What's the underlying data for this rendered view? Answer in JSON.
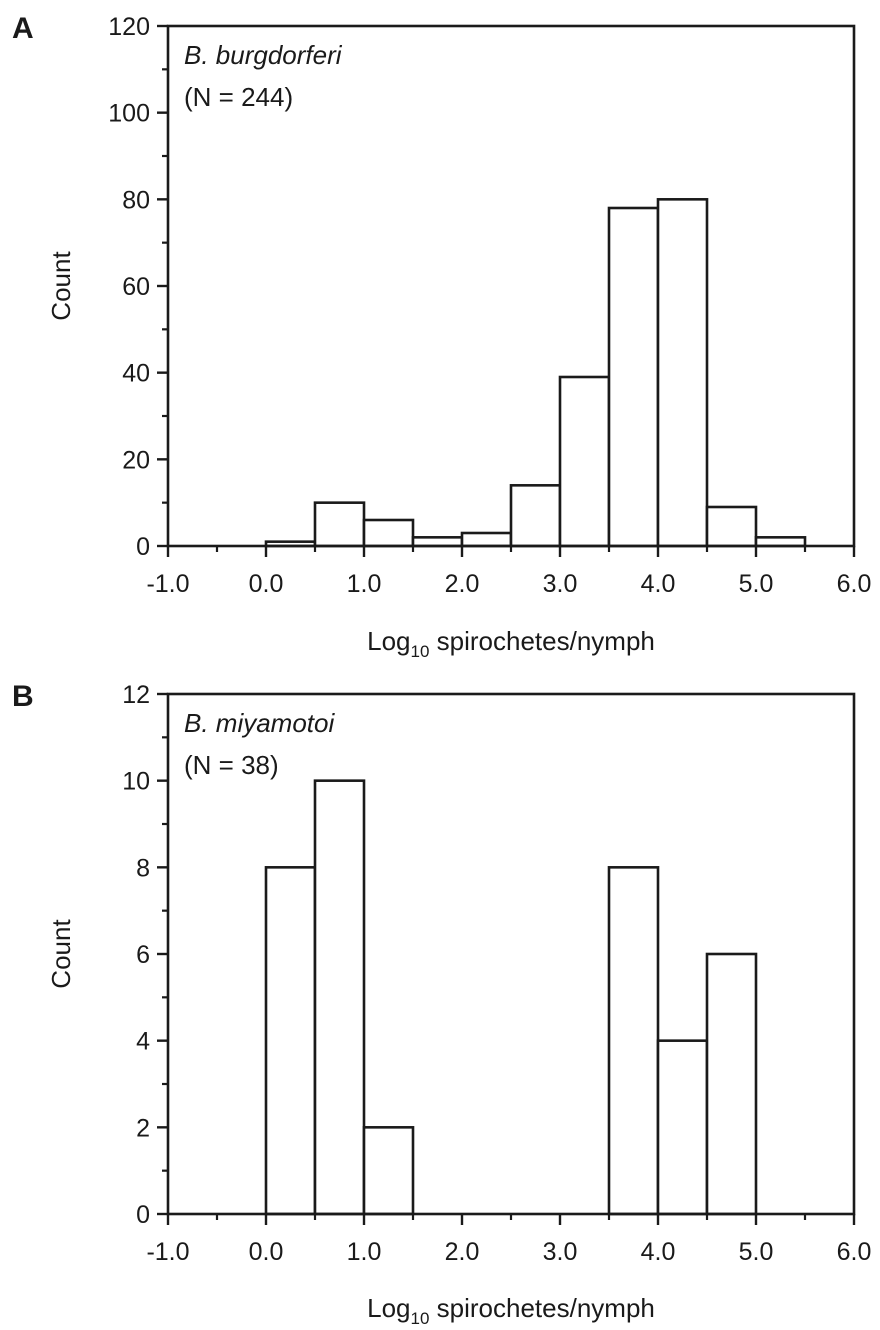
{
  "chart_data": [
    {
      "type": "bar",
      "panel_label": "A",
      "annotation": {
        "organism": "B. burgdorferi",
        "n": "(N = 244)"
      },
      "xlabel": {
        "main": "Log",
        "sub": "10",
        "rest": " spirochetes/nymph"
      },
      "ylabel": "Count",
      "xlim": [
        -1.0,
        6.0
      ],
      "ylim": [
        0,
        120
      ],
      "xticks": [
        -1.0,
        0.0,
        1.0,
        2.0,
        3.0,
        4.0,
        5.0,
        6.0
      ],
      "xtick_labels": [
        "-1.0",
        "0.0",
        "1.0",
        "2.0",
        "3.0",
        "4.0",
        "5.0",
        "6.0"
      ],
      "yticks": [
        0,
        20,
        40,
        60,
        80,
        100,
        120
      ],
      "ytick_labels": [
        "0",
        "20",
        "40",
        "60",
        "80",
        "100",
        "120"
      ],
      "bin_width": 0.5,
      "bins": [
        {
          "x0": 0.0,
          "value": 1
        },
        {
          "x0": 0.5,
          "value": 10
        },
        {
          "x0": 1.0,
          "value": 6
        },
        {
          "x0": 1.5,
          "value": 2
        },
        {
          "x0": 2.0,
          "value": 3
        },
        {
          "x0": 2.5,
          "value": 14
        },
        {
          "x0": 3.0,
          "value": 39
        },
        {
          "x0": 3.5,
          "value": 78
        },
        {
          "x0": 4.0,
          "value": 80
        },
        {
          "x0": 4.5,
          "value": 9
        },
        {
          "x0": 5.0,
          "value": 2
        }
      ],
      "grid": false
    },
    {
      "type": "bar",
      "panel_label": "B",
      "annotation": {
        "organism": "B. miyamotoi",
        "n": "(N = 38)"
      },
      "xlabel": {
        "main": "Log",
        "sub": "10",
        "rest": " spirochetes/nymph"
      },
      "ylabel": "Count",
      "xlim": [
        -1.0,
        6.0
      ],
      "ylim": [
        0,
        12
      ],
      "xticks": [
        -1.0,
        0.0,
        1.0,
        2.0,
        3.0,
        4.0,
        5.0,
        6.0
      ],
      "xtick_labels": [
        "-1.0",
        "0.0",
        "1.0",
        "2.0",
        "3.0",
        "4.0",
        "5.0",
        "6.0"
      ],
      "yticks": [
        0,
        2,
        4,
        6,
        8,
        10,
        12
      ],
      "ytick_labels": [
        "0",
        "2",
        "4",
        "6",
        "8",
        "10",
        "12"
      ],
      "bin_width": 0.5,
      "bins": [
        {
          "x0": 0.0,
          "value": 8
        },
        {
          "x0": 0.5,
          "value": 10
        },
        {
          "x0": 1.0,
          "value": 2
        },
        {
          "x0": 3.5,
          "value": 8
        },
        {
          "x0": 4.0,
          "value": 4
        },
        {
          "x0": 4.5,
          "value": 6
        }
      ],
      "grid": false
    }
  ]
}
